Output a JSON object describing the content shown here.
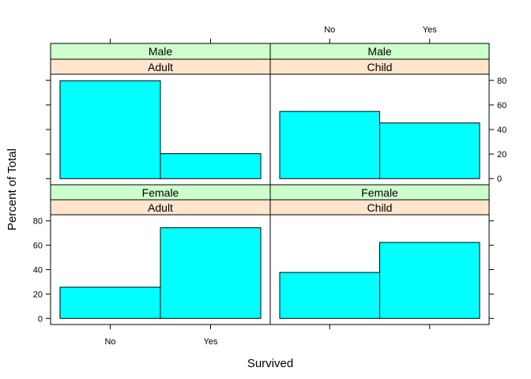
{
  "colors": {
    "bar_fill": "#00ffff",
    "bar_stroke": "#000000",
    "strip_outer": "#ccffcc",
    "strip_inner": "#ffe5cc",
    "frame": "#000000",
    "background": "#ffffff"
  },
  "chart_data": {
    "type": "bar",
    "xlabel": "Survived",
    "ylabel": "Percent of Total",
    "categories": [
      "No",
      "Yes"
    ],
    "y_ticks": [
      0,
      20,
      40,
      60,
      80
    ],
    "ylim": [
      -5,
      85
    ],
    "grid": false,
    "layout": "2x2 trellis",
    "panels": [
      {
        "strip_outer": "Female",
        "strip_inner": "Adult",
        "values": [
          25.6,
          74.4
        ]
      },
      {
        "strip_outer": "Female",
        "strip_inner": "Child",
        "values": [
          37.7,
          62.3
        ]
      },
      {
        "strip_outer": "Male",
        "strip_inner": "Adult",
        "values": [
          79.7,
          20.3
        ]
      },
      {
        "strip_outer": "Male",
        "strip_inner": "Child",
        "values": [
          54.7,
          45.3
        ]
      }
    ]
  }
}
